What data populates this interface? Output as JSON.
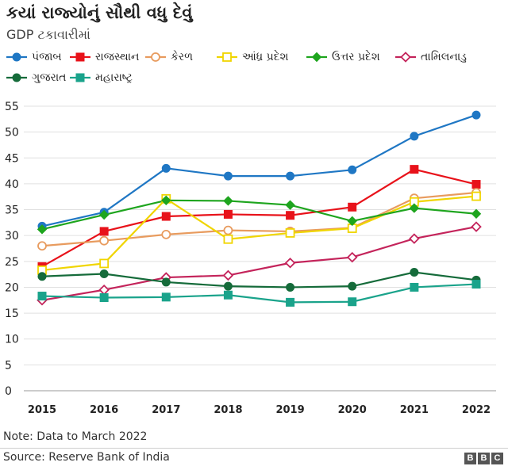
{
  "title": "કયાં રાજ્યોનું સૌથી વધુ દેવું",
  "subtitle": "GDP ટકાવારીમાં",
  "note": "Note: Data to March 2022",
  "source": "Source: Reserve Bank of India",
  "logo": [
    "B",
    "B",
    "C"
  ],
  "chart_data": {
    "type": "line",
    "title": "કયાં રાજ્યોનું સૌથી વધુ દેવું",
    "subtitle": "GDP ટકાવારીમાં",
    "x": [
      "2015",
      "2016",
      "2017",
      "2018",
      "2019",
      "2020",
      "2021",
      "2022"
    ],
    "ylim": [
      0,
      55
    ],
    "yticks": [
      0,
      5,
      10,
      15,
      20,
      25,
      30,
      35,
      40,
      45,
      50,
      55
    ],
    "grid": true,
    "legend_position": "top",
    "series": [
      {
        "name": "પંજાબ",
        "color": "#1f77c4",
        "marker": "circle",
        "values": [
          31.8,
          34.5,
          43.0,
          41.5,
          41.5,
          42.7,
          49.2,
          53.3
        ]
      },
      {
        "name": "રાજસ્થાન",
        "color": "#e8121a",
        "marker": "square",
        "values": [
          24.0,
          30.8,
          33.7,
          34.1,
          33.9,
          35.5,
          42.8,
          39.9
        ]
      },
      {
        "name": "કેરળ",
        "color": "#e89b5e",
        "marker": "circle-open",
        "values": [
          28.0,
          29.0,
          30.2,
          31.0,
          30.8,
          31.5,
          37.2,
          38.3
        ]
      },
      {
        "name": "આંધ્ર પ્રદેશ",
        "color": "#f0d500",
        "marker": "square-open",
        "values": [
          23.3,
          24.6,
          37.1,
          29.3,
          30.5,
          31.4,
          36.5,
          37.6
        ]
      },
      {
        "name": "ઉત્તર પ્રદેશ",
        "color": "#1ea51e",
        "marker": "diamond",
        "values": [
          31.2,
          34.0,
          36.8,
          36.7,
          35.9,
          32.8,
          35.3,
          34.2
        ]
      },
      {
        "name": "તામિલનાડુ",
        "color": "#c4245b",
        "marker": "diamond-open",
        "values": [
          17.5,
          19.5,
          21.9,
          22.3,
          24.7,
          25.8,
          29.4,
          31.7
        ]
      },
      {
        "name": "ગુજરાત",
        "color": "#156b3a",
        "marker": "circle",
        "values": [
          22.1,
          22.6,
          21.0,
          20.2,
          20.0,
          20.2,
          22.9,
          21.4
        ]
      },
      {
        "name": "મહારાષ્ટ્ર",
        "color": "#1aa38b",
        "marker": "square",
        "values": [
          18.3,
          18.0,
          18.1,
          18.5,
          17.1,
          17.2,
          20.0,
          20.6
        ]
      }
    ]
  }
}
